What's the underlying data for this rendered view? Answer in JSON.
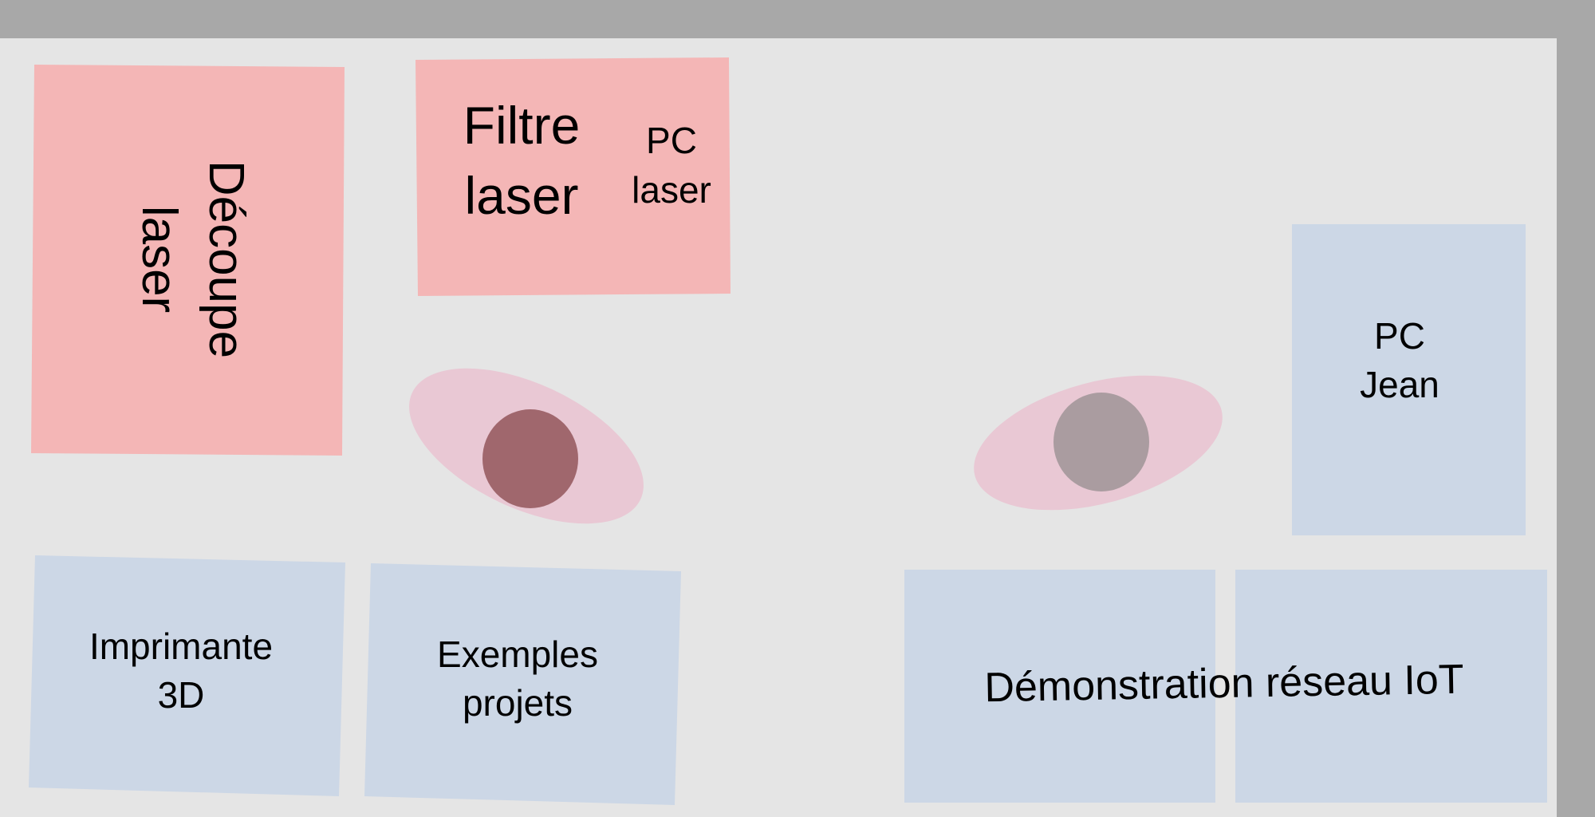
{
  "colors": {
    "frame": "#a8a8a8",
    "background": "#e5e5e5",
    "laser_zone": "#f4b6b6",
    "table_zone": "#ccd7e6",
    "ellipse": "#e9c8d4",
    "person_red": "#a0676d",
    "person_gray": "#aa9ca0"
  },
  "zones": {
    "decoupe_laser": {
      "line1": "Découpe",
      "line2": "laser"
    },
    "filtre_laser": {
      "line1": "Filtre",
      "line2": "laser"
    },
    "pc_laser": {
      "line1": "PC",
      "line2": "laser"
    },
    "pc_jean": {
      "line1": "PC",
      "line2": "Jean"
    },
    "imprimante_3d": {
      "line1": "Imprimante",
      "line2": "3D"
    },
    "exemples_projets": {
      "line1": "Exemples",
      "line2": "projets"
    },
    "demo_iot": {
      "label": "Démonstration réseau IoT"
    }
  },
  "people": [
    {
      "id": "person-left",
      "color_key": "person_red"
    },
    {
      "id": "person-right",
      "color_key": "person_gray"
    }
  ]
}
